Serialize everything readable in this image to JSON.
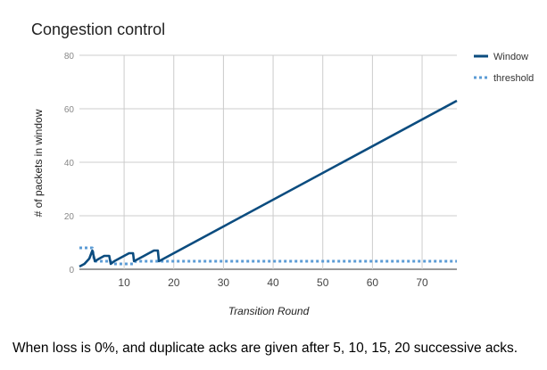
{
  "chart_data": {
    "type": "line",
    "title": "Congestion control",
    "xlabel": "Transition Round",
    "ylabel": "# of packets in window",
    "xlim": [
      1,
      77
    ],
    "ylim": [
      0,
      80
    ],
    "x_ticks": [
      10,
      20,
      30,
      40,
      50,
      60,
      70
    ],
    "y_ticks": [
      0,
      20,
      40,
      60,
      80
    ],
    "grid": true,
    "legend_position": "right",
    "series": [
      {
        "name": "Window",
        "color": "#0b4c7f",
        "style": "solid",
        "points": [
          [
            1,
            1
          ],
          [
            2,
            2
          ],
          [
            3,
            4
          ],
          [
            3.6,
            7
          ],
          [
            4,
            4
          ],
          [
            4.1,
            3
          ],
          [
            5,
            4
          ],
          [
            6,
            5
          ],
          [
            7,
            5
          ],
          [
            7.3,
            2
          ],
          [
            8,
            3
          ],
          [
            9,
            4
          ],
          [
            10,
            5
          ],
          [
            11,
            6
          ],
          [
            11.8,
            6
          ],
          [
            12,
            3
          ],
          [
            13,
            4
          ],
          [
            14,
            5
          ],
          [
            15,
            6
          ],
          [
            16,
            7
          ],
          [
            16.8,
            7
          ],
          [
            17,
            3
          ],
          [
            77,
            63
          ]
        ]
      },
      {
        "name": "threshold",
        "color": "#5b9bd5",
        "style": "dotted",
        "points": [
          [
            1,
            8
          ],
          [
            3.6,
            8
          ],
          [
            4,
            3
          ],
          [
            6,
            3
          ],
          [
            7.3,
            3
          ],
          [
            7.5,
            2
          ],
          [
            12,
            2
          ],
          [
            12.3,
            3
          ],
          [
            77,
            3
          ]
        ]
      }
    ]
  },
  "caption": "When loss is 0%, and duplicate acks are given after 5, 10, 15, 20 successive acks."
}
